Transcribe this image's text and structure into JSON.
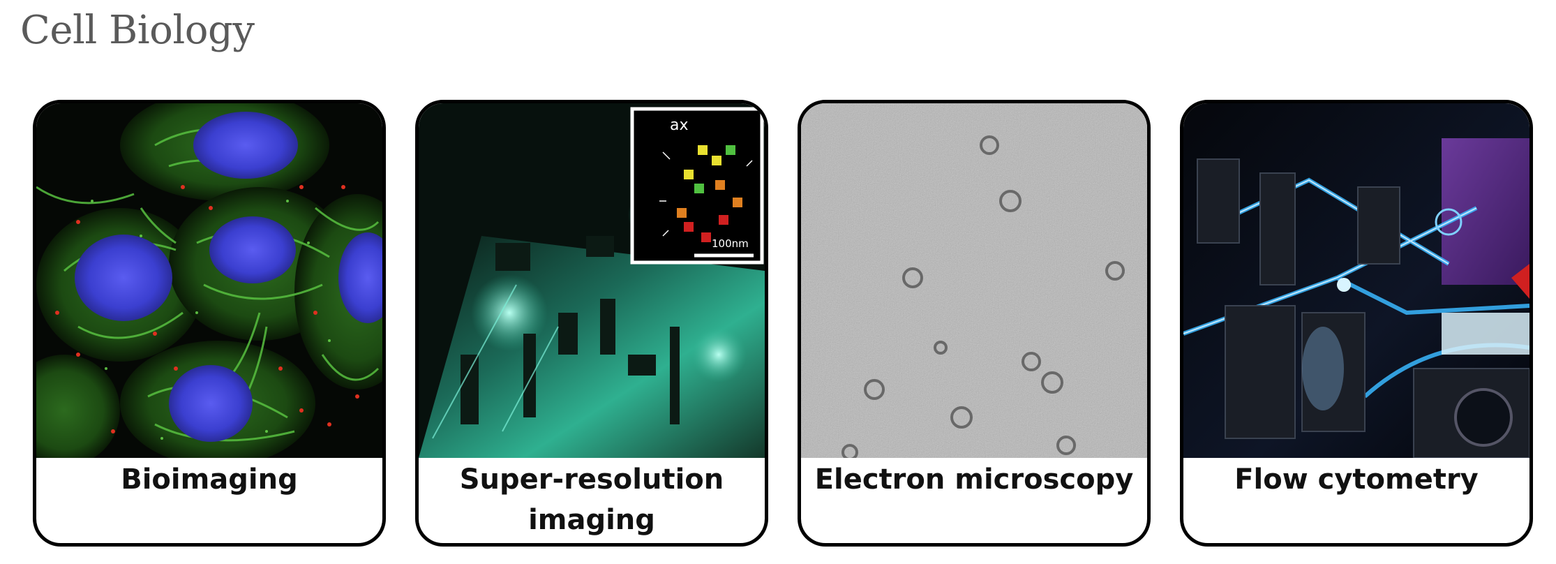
{
  "page": {
    "title": "Cell Biology"
  },
  "cards": [
    {
      "label": "Bioimaging",
      "image": "fluorescent-cells-image"
    },
    {
      "label": "Super-resolution imaging",
      "image": "optical-bench-image",
      "inset": {
        "top_label": "ax",
        "scale_label": "100nm"
      }
    },
    {
      "label": "Electron microscopy",
      "image": "electron-micrograph-image"
    },
    {
      "label": "Flow cytometry",
      "image": "laser-optics-image"
    }
  ],
  "colors": {
    "title": "#5a5a5a",
    "card_border": "#000000",
    "label": "#111111"
  }
}
